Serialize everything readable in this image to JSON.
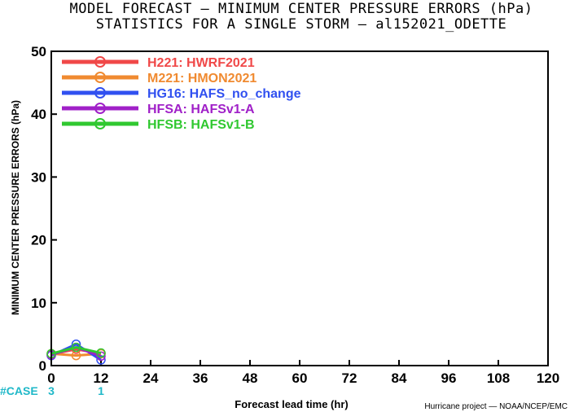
{
  "chart_data": {
    "type": "line",
    "title": "MODEL FORECAST — MINIMUM CENTER PRESSURE ERRORS (hPa)",
    "subtitle": "STATISTICS FOR A SINGLE STORM — al152021_ODETTE",
    "xlabel": "Forecast lead time (hr)",
    "ylabel": "MINIMUM CENTER PRESSURE ERRORS (hPa)",
    "xlim": [
      0,
      120
    ],
    "ylim": [
      0,
      50
    ],
    "xticks": [
      "0",
      "12",
      "24",
      "36",
      "48",
      "60",
      "72",
      "84",
      "96",
      "108",
      "120"
    ],
    "yticks": [
      "0",
      "10",
      "20",
      "30",
      "40",
      "50"
    ],
    "legend_position": "top-left",
    "case_label": "#CASE",
    "cases": [
      {
        "x": 0,
        "label": "3"
      },
      {
        "x": 12,
        "label": "1"
      }
    ],
    "credit": "Hurricane project — NOAA/NCEP/EMC",
    "series": [
      {
        "name": "H221: HWRF2021",
        "color": "#f04848",
        "x": [
          0,
          6,
          12
        ],
        "y": [
          1.8,
          2.6,
          1.9
        ]
      },
      {
        "name": "M221: HMON2021",
        "color": "#f08a30",
        "x": [
          0,
          6,
          12
        ],
        "y": [
          1.9,
          1.6,
          1.9
        ]
      },
      {
        "name": "HG16: HAFS_no_change",
        "color": "#3050f0",
        "x": [
          0,
          6,
          12
        ],
        "y": [
          1.6,
          3.4,
          0.9
        ]
      },
      {
        "name": "HFSA: HAFSv1-A",
        "color": "#a020c8",
        "x": [
          0,
          6,
          12
        ],
        "y": [
          1.7,
          2.9,
          1.5
        ]
      },
      {
        "name": "HFSB: HAFSv1-B",
        "color": "#30c830",
        "x": [
          0,
          6,
          12
        ],
        "y": [
          1.9,
          2.9,
          2.0
        ]
      }
    ]
  }
}
